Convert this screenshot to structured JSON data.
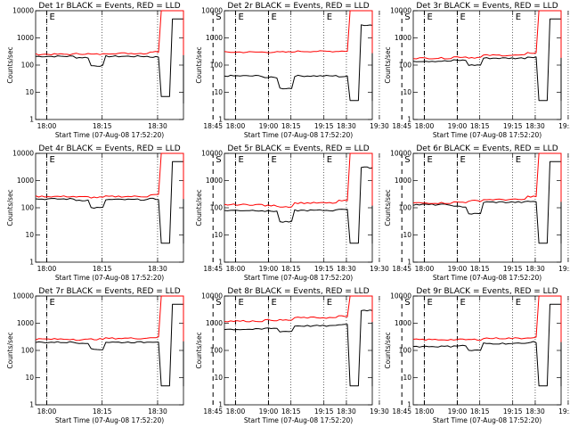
{
  "chart_data": {
    "type": "line",
    "y_scale": "log",
    "ylim": [
      1,
      10000
    ],
    "y_ticks": [
      "1",
      "10",
      "100",
      "1000",
      "10000"
    ],
    "x_ticks": [
      "18:00",
      "18:15",
      "18:30",
      "18:45",
      "19:00",
      "19:15",
      "19:30"
    ],
    "xlim_minutes": [
      -3,
      37
    ],
    "xlabel": "Start Time (07-Aug-08 17:52:20)",
    "ylabel": "Counts/sec",
    "grid": "vertical dotted lines at 18:00, 18:15, 18:30, 19:00, 19:15, 19:30",
    "colors": {
      "events": "#000000",
      "lld": "#ff0000"
    },
    "markers": [
      {
        "label": "E",
        "x": "18:00",
        "style": "dashed"
      },
      {
        "label": "S",
        "x": "18:45",
        "style": "dashed"
      },
      {
        "label": "E",
        "x": "19:00",
        "style": "dashed"
      },
      {
        "label": "E",
        "x": "19:15",
        "style": "none"
      }
    ],
    "panels": [
      {
        "title": "Det 1r BLACK = Events, RED = LLD",
        "burst": [
          0,
          12
        ],
        "dip": null,
        "series": [
          {
            "name": "BLACK",
            "values": [
              210,
              190,
              95,
              210,
              200,
              7,
              5000,
              5000,
              4,
              190,
              180,
              170
            ]
          },
          {
            "name": "RED",
            "values": [
              250,
              260,
              250,
              270,
              310,
              10000,
              10000,
              10000,
              400,
              290,
              280,
              240
            ]
          }
        ]
      },
      {
        "title": "Det 2r BLACK = Events, RED = LLD",
        "burst": [
          18,
          30
        ],
        "dip": null,
        "series": [
          {
            "name": "BLACK",
            "values": [
              40,
              35,
              14,
              40,
              38,
              5,
              3000,
              3000,
              5,
              38,
              36,
              30
            ]
          },
          {
            "name": "RED",
            "values": [
              300,
              300,
              300,
              320,
              330,
              10000,
              10000,
              10000,
              320,
              320,
              320,
              300
            ]
          }
        ]
      },
      {
        "title": "Det 3r BLACK = Events, RED = LLD",
        "burst": [
          0,
          12
        ],
        "dip": null,
        "series": [
          {
            "name": "BLACK",
            "values": [
              140,
              150,
              100,
              180,
              200,
              5,
              5000,
              5000,
              5,
              190,
              180,
              170
            ]
          },
          {
            "name": "RED",
            "values": [
              180,
              200,
              190,
              230,
              280,
              10000,
              10000,
              10000,
              260,
              240,
              230,
              200
            ]
          }
        ]
      },
      {
        "title": "Det 4r BLACK = Events, RED = LLD",
        "burst": [
          0,
          12
        ],
        "dip": null,
        "series": [
          {
            "name": "BLACK",
            "values": [
              210,
              190,
              100,
              200,
              210,
              5,
              5000,
              5000,
              5,
              200,
              190,
              160
            ]
          },
          {
            "name": "RED",
            "values": [
              260,
              250,
              240,
              260,
              300,
              10000,
              10000,
              10000,
              300,
              280,
              270,
              230
            ]
          }
        ]
      },
      {
        "title": "Det 5r BLACK = Events, RED = LLD",
        "burst": [
          18,
          30
        ],
        "dip": null,
        "series": [
          {
            "name": "BLACK",
            "values": [
              80,
              75,
              30,
              80,
              90,
              5,
              3000,
              3000,
              5,
              110,
              100,
              80
            ]
          },
          {
            "name": "RED",
            "values": [
              130,
              120,
              110,
              150,
              180,
              10000,
              10000,
              10000,
              180,
              170,
              160,
              130
            ]
          }
        ]
      },
      {
        "title": "Det 6r BLACK = Events, RED = LLD",
        "burst": [
          0,
          12
        ],
        "dip": [
          18,
          30
        ],
        "series": [
          {
            "name": "BLACK",
            "values": [
              130,
              110,
              60,
              160,
              170,
              5,
              5000,
              5000,
              5,
              160,
              150,
              130
            ]
          },
          {
            "name": "RED",
            "values": [
              150,
              160,
              180,
              200,
              260,
              10000,
              10000,
              10000,
              250,
              230,
              220,
              180
            ]
          }
        ]
      },
      {
        "title": "Det 7r BLACK = Events, RED = LLD",
        "burst": [
          0,
          12
        ],
        "dip": null,
        "series": [
          {
            "name": "BLACK",
            "values": [
              200,
              190,
              110,
              200,
              210,
              5,
              5000,
              5000,
              5,
              220,
              200,
              170
            ]
          },
          {
            "name": "RED",
            "values": [
              260,
              250,
              260,
              280,
              300,
              10000,
              10000,
              10000,
              300,
              280,
              290,
              230
            ]
          }
        ]
      },
      {
        "title": "Det 8r BLACK = Events, RED = LLD",
        "burst": [
          18,
          30
        ],
        "dip": null,
        "series": [
          {
            "name": "BLACK",
            "values": [
              600,
              650,
              500,
              800,
              900,
              5,
              3000,
              3000,
              5,
              1000,
              900,
              700
            ]
          },
          {
            "name": "RED",
            "values": [
              1200,
              1300,
              1300,
              1600,
              1800,
              10000,
              10000,
              10000,
              1800,
              1700,
              1600,
              1200
            ]
          }
        ]
      },
      {
        "title": "Det 9r BLACK = Events, RED = LLD",
        "burst": [
          0,
          12
        ],
        "dip": null,
        "series": [
          {
            "name": "BLACK",
            "values": [
              140,
              150,
              100,
              180,
              200,
              5,
              5000,
              5000,
              5,
              190,
              180,
              150
            ]
          },
          {
            "name": "RED",
            "values": [
              250,
              250,
              250,
              280,
              300,
              10000,
              10000,
              10000,
              280,
              260,
              260,
              220
            ]
          }
        ]
      }
    ]
  }
}
